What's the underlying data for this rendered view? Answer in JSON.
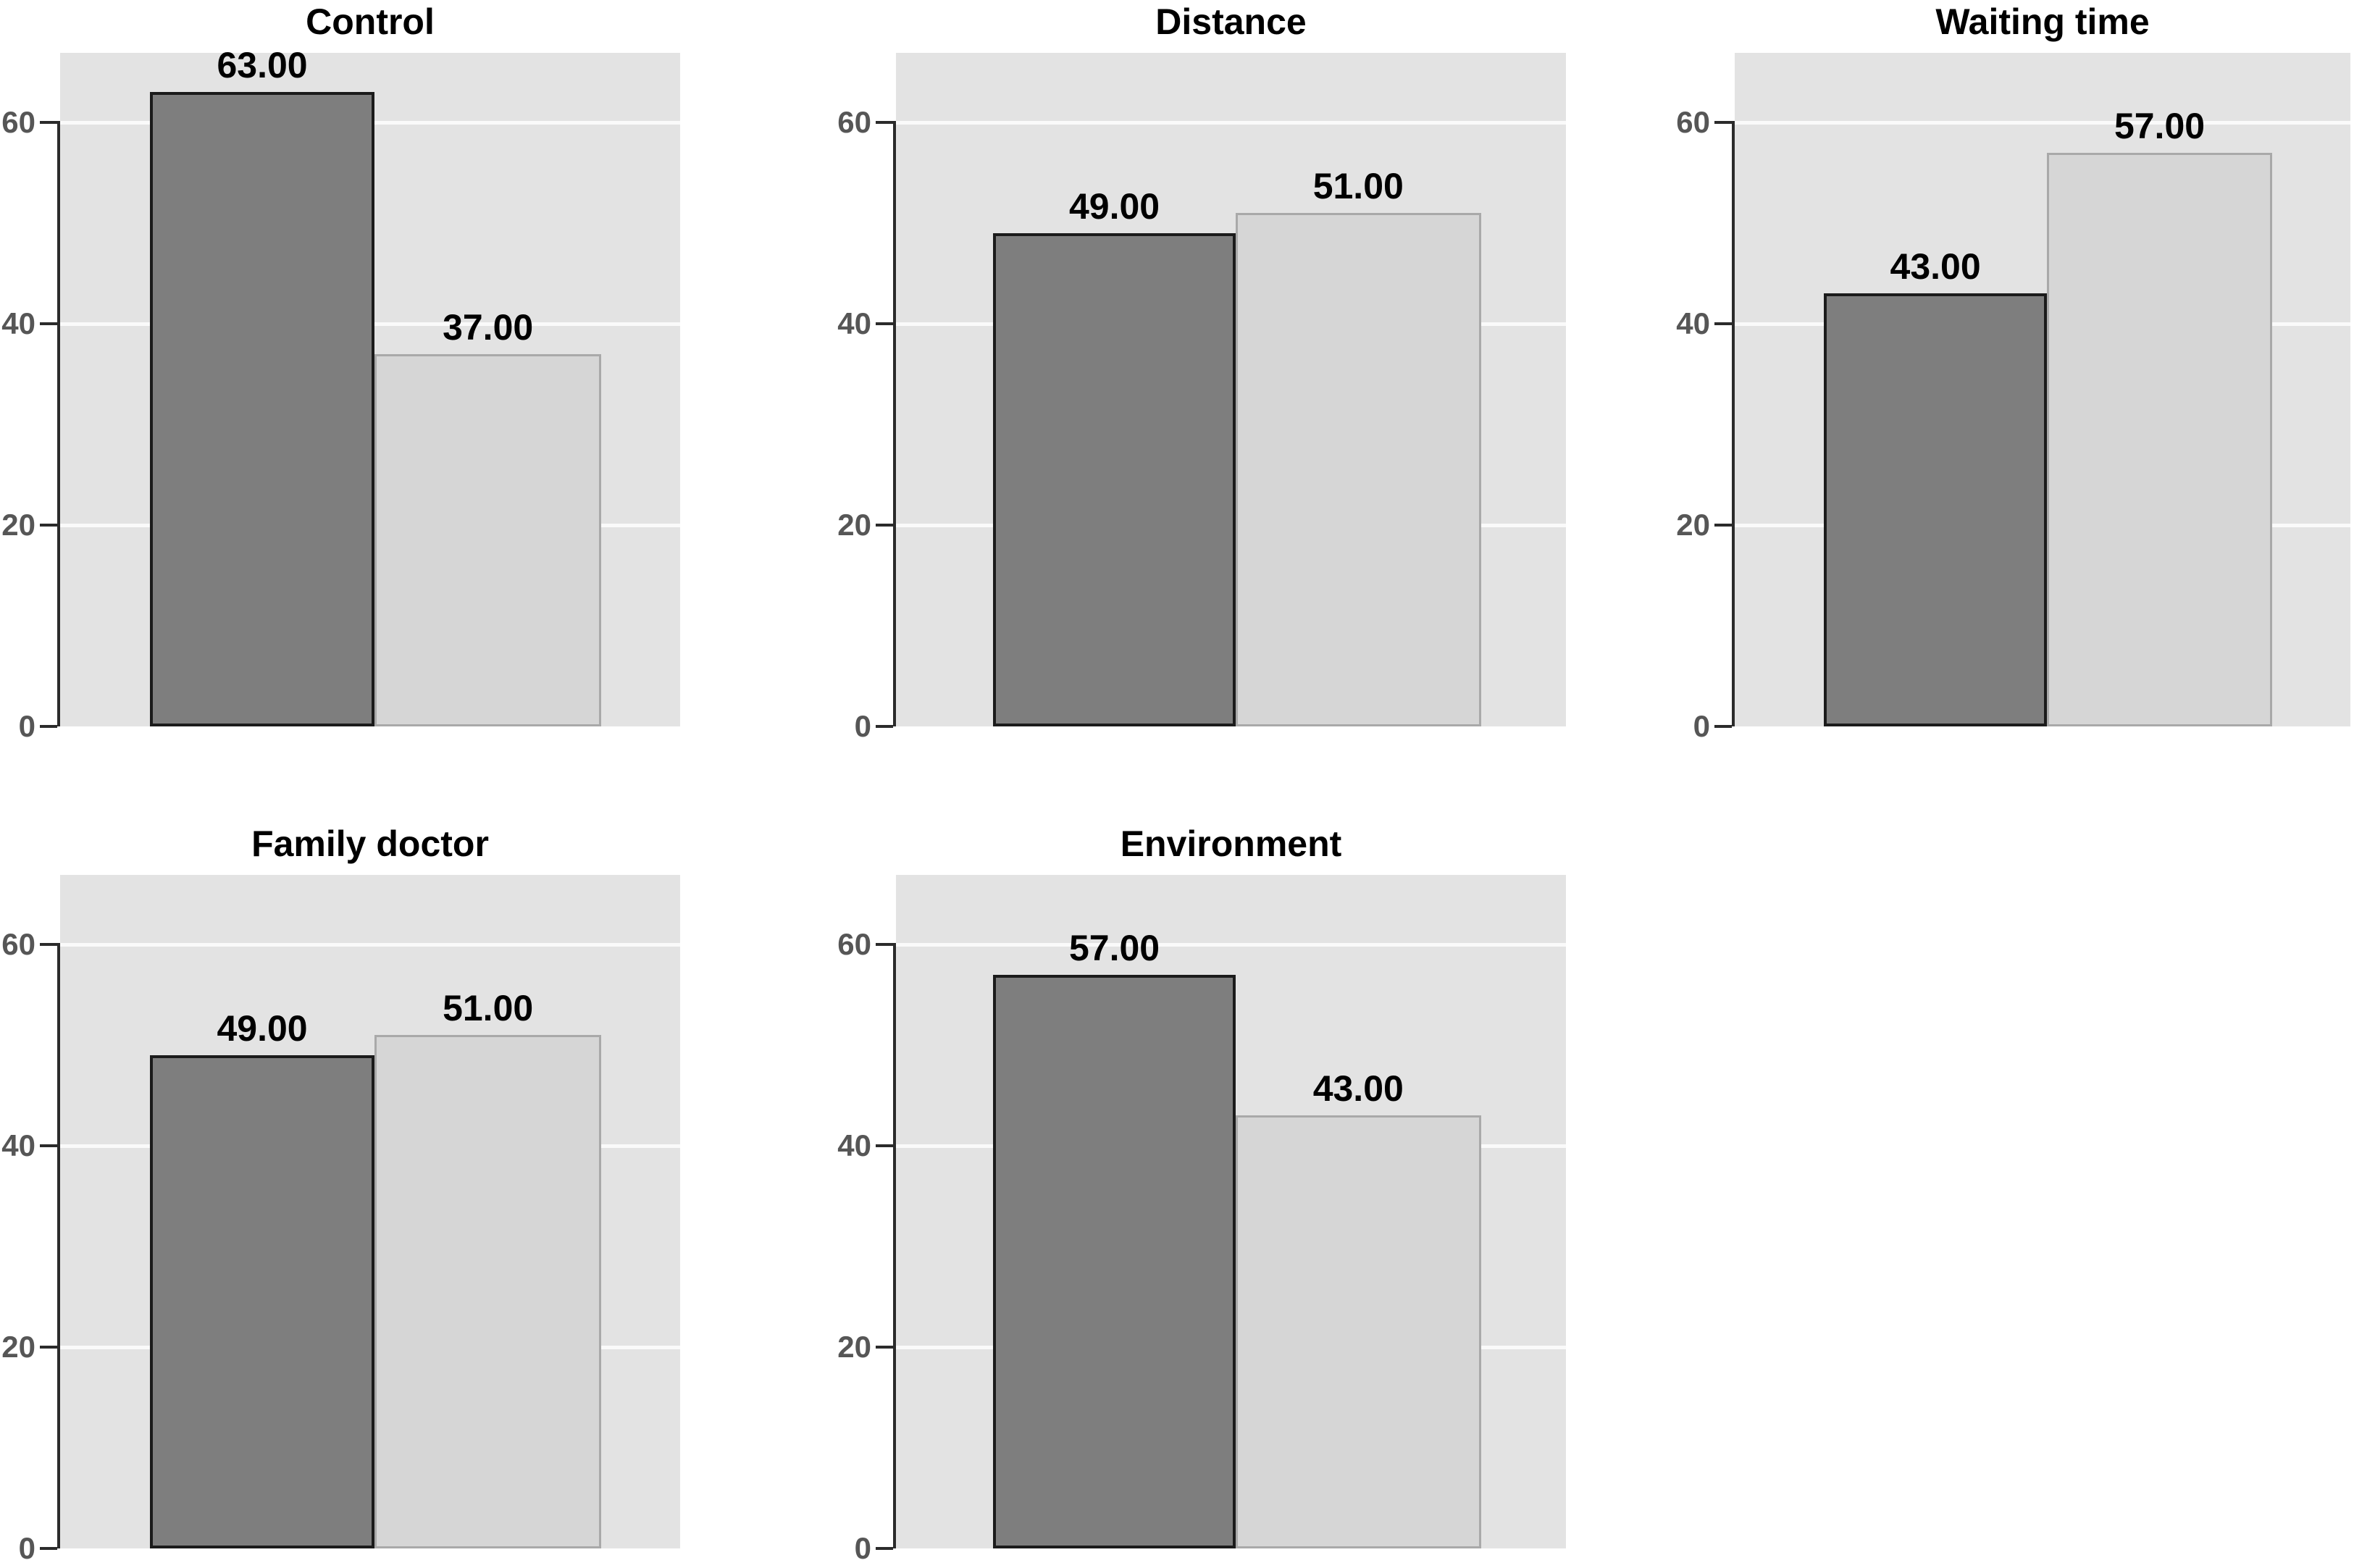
{
  "figure": {
    "kind": "multi-panel clustered bar figure",
    "rows": 2,
    "columns": 3,
    "panels_order": [
      "Control",
      "Distance",
      "Waiting time",
      "Family doctor",
      "Environment"
    ]
  },
  "y_axis": {
    "tick_values": [
      0,
      20,
      40,
      60
    ],
    "tick_labels": [
      "0",
      "20",
      "40",
      "60"
    ],
    "range": [
      0,
      67
    ]
  },
  "chart_data": [
    {
      "type": "bar",
      "title": "Control",
      "ylim": [
        0,
        67
      ],
      "yticks": [
        0,
        20,
        40,
        60
      ],
      "grid": "horizontal white gridlines on gray panel",
      "legend": "none",
      "series": [
        {
          "name": "dark_gray",
          "value": 63,
          "value_label": "63.00"
        },
        {
          "name": "light_gray",
          "value": 37,
          "value_label": "37.00"
        }
      ]
    },
    {
      "type": "bar",
      "title": "Distance",
      "ylim": [
        0,
        67
      ],
      "yticks": [
        0,
        20,
        40,
        60
      ],
      "grid": "horizontal white gridlines on gray panel",
      "legend": "none",
      "series": [
        {
          "name": "dark_gray",
          "value": 49,
          "value_label": "49.00"
        },
        {
          "name": "light_gray",
          "value": 51,
          "value_label": "51.00"
        }
      ]
    },
    {
      "type": "bar",
      "title": "Waiting time",
      "ylim": [
        0,
        67
      ],
      "yticks": [
        0,
        20,
        40,
        60
      ],
      "grid": "horizontal white gridlines on gray panel",
      "legend": "none",
      "series": [
        {
          "name": "dark_gray",
          "value": 43,
          "value_label": "43.00"
        },
        {
          "name": "light_gray",
          "value": 57,
          "value_label": "57.00"
        }
      ]
    },
    {
      "type": "bar",
      "title": "Family doctor",
      "ylim": [
        0,
        67
      ],
      "yticks": [
        0,
        20,
        40,
        60
      ],
      "grid": "horizontal white gridlines on gray panel",
      "legend": "none",
      "series": [
        {
          "name": "dark_gray",
          "value": 49,
          "value_label": "49.00"
        },
        {
          "name": "light_gray",
          "value": 51,
          "value_label": "51.00"
        }
      ]
    },
    {
      "type": "bar",
      "title": "Environment",
      "ylim": [
        0,
        67
      ],
      "yticks": [
        0,
        20,
        40,
        60
      ],
      "grid": "horizontal white gridlines on gray panel",
      "legend": "none",
      "series": [
        {
          "name": "dark_gray",
          "value": 57,
          "value_label": "57.00"
        },
        {
          "name": "light_gray",
          "value": 43,
          "value_label": "43.00"
        }
      ]
    }
  ],
  "colors": {
    "figure_bg": "#ffffff",
    "panel_bg": "#e3e3e3",
    "gridline": "#fafafa",
    "bar_dark_fill": "#7e7e7e",
    "bar_dark_border": "#1b1b1b",
    "bar_light_fill": "#d6d6d6",
    "bar_light_border": "#a9a9a9",
    "axis_line": "#2b2b2b",
    "tick_label": "#565656",
    "text": "#000000"
  }
}
